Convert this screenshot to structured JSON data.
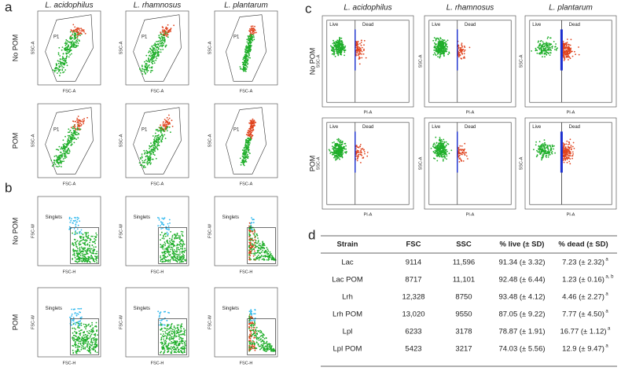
{
  "panel_a": {
    "label": "a",
    "columns": [
      "L. acidophilus",
      "L. rhamnosus",
      "L. plantarum"
    ],
    "rows": [
      "No POM",
      "POM"
    ],
    "y_axis": "SSC-A",
    "x_axis": "FSC-A",
    "gate": "P1"
  },
  "panel_b": {
    "label": "b",
    "rows": [
      "No POM",
      "POM"
    ],
    "y_axis": "FSC-W",
    "x_axis": "FSC-H",
    "gate": "Singlets"
  },
  "panel_c": {
    "label": "c",
    "columns": [
      "L. acidophilus",
      "L. rhamnosus",
      "L. plantarum"
    ],
    "rows": [
      "No POM",
      "POM"
    ],
    "y_axis": "SSC-A",
    "x_axis": "PI-A",
    "gates": [
      "Live",
      "Dead"
    ]
  },
  "panel_d": {
    "label": "d",
    "header": [
      "Strain",
      "FSC",
      "SSC",
      "% live (± SD)",
      "% dead (± SD)"
    ],
    "rows": [
      {
        "cells": [
          "Lac",
          "9114",
          "11,596",
          "91.34 (± 3.32)",
          "7.23 (± 2.32)"
        ],
        "sup": "a"
      },
      {
        "cells": [
          "Lac POM",
          "8717",
          "11,101",
          "92.48 (± 6.44)",
          "1.23 (± 0.16)"
        ],
        "sup": "a, b"
      },
      {
        "cells": [
          "Lrh",
          "12,328",
          "8750",
          "93.48 (± 4.12)",
          "4.46 (± 2.27)"
        ],
        "sup": "a"
      },
      {
        "cells": [
          "Lrh POM",
          "13,020",
          "9550",
          "87.05 (± 9.22)",
          "7.77 (± 4.50)"
        ],
        "sup": "a"
      },
      {
        "cells": [
          "Lpl",
          "6233",
          "3178",
          "78.87 (± 1.91)",
          "16.77 (± 1.12)"
        ],
        "sup": "a"
      },
      {
        "cells": [
          "Lpl POM",
          "5423",
          "3217",
          "74.03 (± 5.56)",
          "12.9 (± 9.47)"
        ],
        "sup": "a"
      }
    ]
  }
}
